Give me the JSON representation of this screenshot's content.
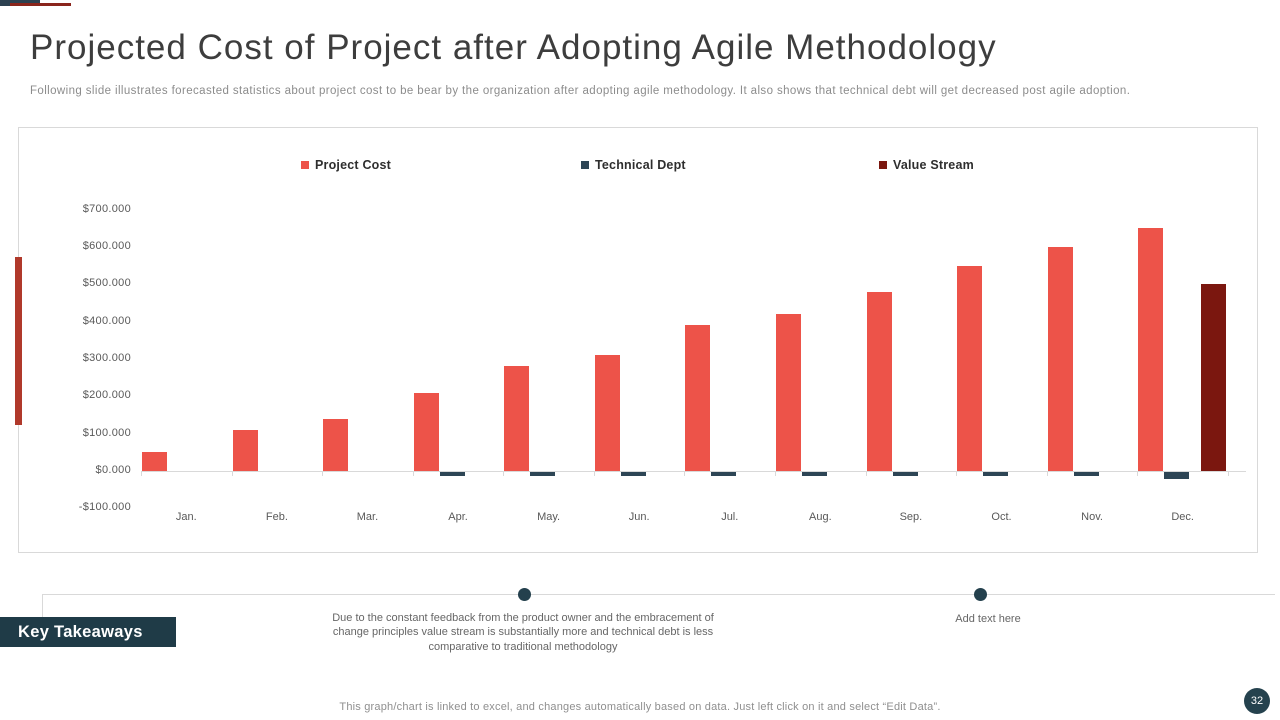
{
  "slide": {
    "title": "Projected Cost of Project after Adopting Agile Methodology",
    "subtitle": "Following slide illustrates forecasted statistics about project cost to be bear by the organization after adopting agile methodology. It also shows that technical debt will get decreased post agile adoption.",
    "footer_note": "This graph/chart is linked to excel,  and changes automatically based on data. Just left click on it and select “Edit Data”.",
    "page_number": "32"
  },
  "key_takeaways": {
    "label": "Key Takeaways",
    "items": [
      {
        "text": "Due to the constant feedback from the product owner and the embracement of change principles value stream is substantially more and technical debt is less comparative to traditional methodology"
      },
      {
        "text": "Add text here"
      }
    ]
  },
  "colors": {
    "project_cost": "#ed5349",
    "technical_dept": "#2d4555",
    "value_stream": "#7b170f",
    "accent_navy": "#2c4150",
    "accent_red": "#b0392b",
    "axis_gray": "#d9d9d9",
    "dark_panel": "#1f3b47"
  },
  "chart_data": {
    "type": "bar",
    "title": "",
    "xlabel": "",
    "ylabel": "",
    "grid": false,
    "legend_position": "top",
    "ylim": [
      -100000,
      700000
    ],
    "categories": [
      "Jan.",
      "Feb.",
      "Mar.",
      "Apr.",
      "May.",
      "Jun.",
      "Jul.",
      "Aug.",
      "Sep.",
      "Oct.",
      "Nov.",
      "Dec."
    ],
    "series": [
      {
        "name": "Project Cost",
        "color": "#ed5349",
        "values": [
          50000,
          110000,
          140000,
          210000,
          280000,
          310000,
          390000,
          420000,
          480000,
          550000,
          600000,
          650000
        ]
      },
      {
        "name": "Technical Dept",
        "color": "#2d4555",
        "values": [
          0,
          0,
          0,
          -10000,
          -10000,
          -10000,
          -12000,
          -12000,
          -12000,
          -12000,
          -12000,
          -20000
        ]
      },
      {
        "name": "Value Stream",
        "color": "#7b170f",
        "values": [
          0,
          0,
          0,
          0,
          0,
          0,
          0,
          0,
          0,
          0,
          0,
          500000
        ]
      }
    ],
    "y_ticks": [
      {
        "value": 700000,
        "label": "$700.000"
      },
      {
        "value": 600000,
        "label": "$600.000"
      },
      {
        "value": 500000,
        "label": "$500.000"
      },
      {
        "value": 400000,
        "label": "$400.000"
      },
      {
        "value": 300000,
        "label": "$300.000"
      },
      {
        "value": 200000,
        "label": "$200.000"
      },
      {
        "value": 100000,
        "label": "$100.000"
      },
      {
        "value": 0,
        "label": "$0.000"
      },
      {
        "value": -100000,
        "label": "-$100.000"
      }
    ]
  }
}
